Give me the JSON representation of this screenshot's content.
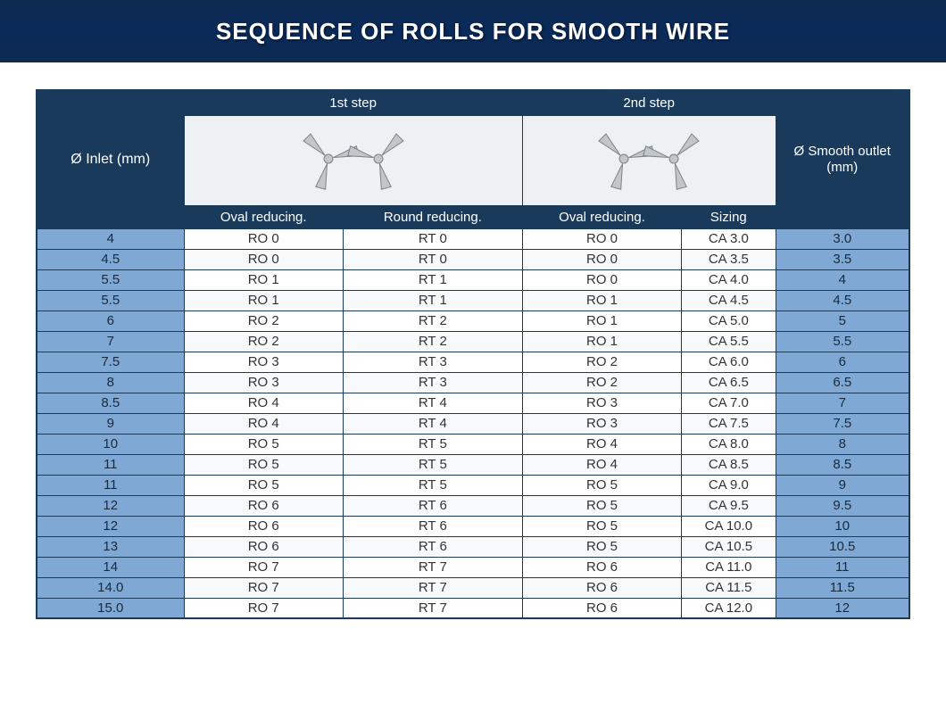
{
  "title": "SEQUENCE OF ROLLS FOR SMOOTH WIRE",
  "colors": {
    "title_bg": "#0d2a4f",
    "title_text": "#ffffff",
    "header_bg": "#1a3a5c",
    "header_text": "#ffffff",
    "inlet_outlet_bg": "#7fa8d4",
    "body_bg": "#ffffff",
    "border": "#1a3a5c",
    "roll_fill": "#c0c6ca"
  },
  "table": {
    "inlet_header": "Ø Inlet (mm)",
    "outlet_header": "Ø Smooth outlet (mm)",
    "step1_header": "1st step",
    "step2_header": "2nd step",
    "sub_headers": {
      "oval1": "Oval reducing.",
      "round": "Round reducing.",
      "oval2": "Oval reducing.",
      "sizing": "Sizing"
    },
    "rows": [
      {
        "inlet": "4",
        "oval1": "RO 0",
        "round": "RT 0",
        "oval2": "RO 0",
        "sizing": "CA 3.0",
        "outlet": "3.0"
      },
      {
        "inlet": "4.5",
        "oval1": "RO 0",
        "round": "RT 0",
        "oval2": "RO 0",
        "sizing": "CA 3.5",
        "outlet": "3.5"
      },
      {
        "inlet": "5.5",
        "oval1": "RO 1",
        "round": "RT 1",
        "oval2": "RO 0",
        "sizing": "CA 4.0",
        "outlet": "4"
      },
      {
        "inlet": "5.5",
        "oval1": "RO 1",
        "round": "RT 1",
        "oval2": "RO 1",
        "sizing": "CA 4.5",
        "outlet": "4.5"
      },
      {
        "inlet": "6",
        "oval1": "RO 2",
        "round": "RT 2",
        "oval2": "RO 1",
        "sizing": "CA 5.0",
        "outlet": "5"
      },
      {
        "inlet": "7",
        "oval1": "RO 2",
        "round": "RT 2",
        "oval2": "RO 1",
        "sizing": "CA 5.5",
        "outlet": "5.5"
      },
      {
        "inlet": "7.5",
        "oval1": "RO 3",
        "round": "RT 3",
        "oval2": "RO 2",
        "sizing": "CA 6.0",
        "outlet": "6"
      },
      {
        "inlet": "8",
        "oval1": "RO 3",
        "round": "RT 3",
        "oval2": "RO 2",
        "sizing": "CA 6.5",
        "outlet": "6.5"
      },
      {
        "inlet": "8.5",
        "oval1": "RO 4",
        "round": "RT 4",
        "oval2": "RO 3",
        "sizing": "CA 7.0",
        "outlet": "7"
      },
      {
        "inlet": "9",
        "oval1": "RO 4",
        "round": "RT 4",
        "oval2": "RO 3",
        "sizing": "CA 7.5",
        "outlet": "7.5"
      },
      {
        "inlet": "10",
        "oval1": "RO 5",
        "round": "RT 5",
        "oval2": "RO 4",
        "sizing": "CA 8.0",
        "outlet": "8"
      },
      {
        "inlet": "11",
        "oval1": "RO 5",
        "round": "RT 5",
        "oval2": "RO 4",
        "sizing": "CA 8.5",
        "outlet": "8.5"
      },
      {
        "inlet": "11",
        "oval1": "RO 5",
        "round": "RT 5",
        "oval2": "RO 5",
        "sizing": "CA 9.0",
        "outlet": "9"
      },
      {
        "inlet": "12",
        "oval1": "RO 6",
        "round": "RT 6",
        "oval2": "RO 5",
        "sizing": "CA 9.5",
        "outlet": "9.5"
      },
      {
        "inlet": "12",
        "oval1": "RO 6",
        "round": "RT 6",
        "oval2": "RO 5",
        "sizing": "CA 10.0",
        "outlet": "10"
      },
      {
        "inlet": "13",
        "oval1": "RO 6",
        "round": "RT 6",
        "oval2": "RO 5",
        "sizing": "CA 10.5",
        "outlet": "10.5"
      },
      {
        "inlet": "14",
        "oval1": "RO 7",
        "round": "RT 7",
        "oval2": "RO 6",
        "sizing": "CA 11.0",
        "outlet": "11"
      },
      {
        "inlet": "14.0",
        "oval1": "RO 7",
        "round": "RT 7",
        "oval2": "RO 6",
        "sizing": "CA 11.5",
        "outlet": "11.5"
      },
      {
        "inlet": "15.0",
        "oval1": "RO 7",
        "round": "RT 7",
        "oval2": "RO 6",
        "sizing": "CA 12.0",
        "outlet": "12"
      }
    ]
  }
}
